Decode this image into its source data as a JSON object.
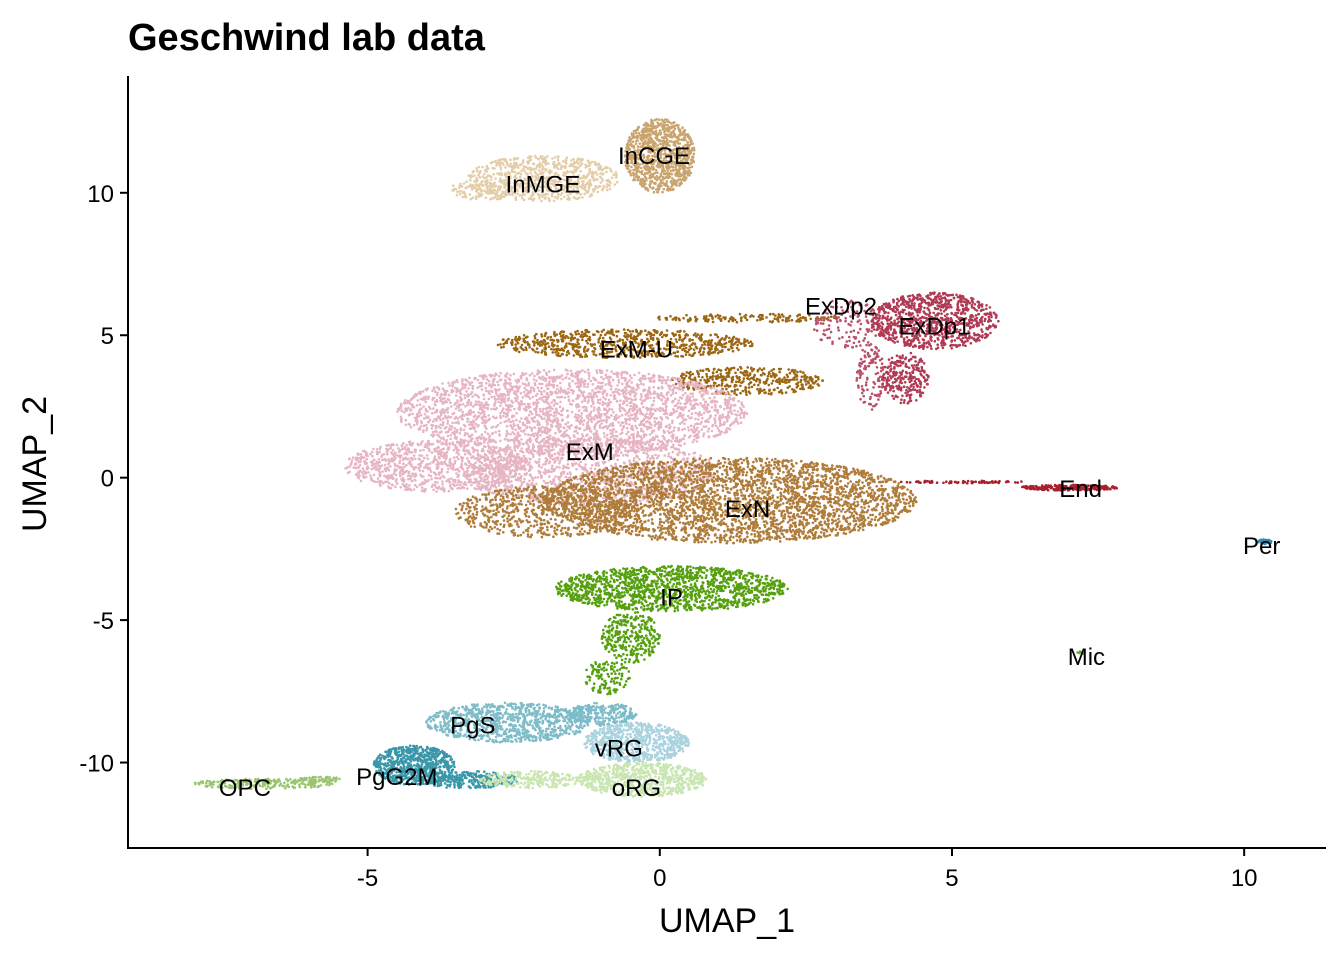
{
  "chart_data": {
    "type": "scatter",
    "title": "Geschwind lab data",
    "xlabel": "UMAP_1",
    "ylabel": "UMAP_2",
    "xlim": [
      -9.1,
      11.4
    ],
    "ylim": [
      -13.0,
      14.1
    ],
    "xticks": [
      "-5",
      "0",
      "5",
      "10"
    ],
    "yticks": [
      "-10",
      "-5",
      "0",
      "5",
      "10"
    ],
    "grid": false,
    "legend": "none",
    "clusters": [
      {
        "label": "InCGE",
        "x": -0.1,
        "y": 11.3,
        "color": "#c9a46e",
        "blobs": [
          {
            "cx": 0.0,
            "cy": 11.3,
            "rx": 0.6,
            "ry": 1.3,
            "n": 900
          }
        ]
      },
      {
        "label": "InMGE",
        "x": -2.0,
        "y": 10.3,
        "color": "#e4cda9",
        "blobs": [
          {
            "cx": -2.0,
            "cy": 10.5,
            "rx": 1.3,
            "ry": 0.8,
            "n": 700
          },
          {
            "cx": -3.0,
            "cy": 10.1,
            "rx": 0.6,
            "ry": 0.35,
            "n": 120
          }
        ]
      },
      {
        "label": "ExM-U",
        "x": -0.4,
        "y": 4.5,
        "color": "#9c6612",
        "blobs": [
          {
            "cx": -0.6,
            "cy": 4.7,
            "rx": 2.2,
            "ry": 0.5,
            "n": 700
          },
          {
            "cx": 1.5,
            "cy": 3.4,
            "rx": 1.3,
            "ry": 0.5,
            "n": 400
          },
          {
            "cx": 1.5,
            "cy": 5.6,
            "rx": 1.6,
            "ry": 0.15,
            "n": 150
          }
        ]
      },
      {
        "label": "ExDp2",
        "x": 3.1,
        "y": 6.0,
        "color": "#b8506a",
        "blobs": [
          {
            "cx": 3.2,
            "cy": 5.4,
            "rx": 0.6,
            "ry": 0.9,
            "n": 140
          },
          {
            "cx": 3.6,
            "cy": 3.5,
            "rx": 0.25,
            "ry": 1.2,
            "n": 120
          }
        ]
      },
      {
        "label": "ExDp1",
        "x": 4.7,
        "y": 5.3,
        "color": "#b03a54",
        "blobs": [
          {
            "cx": 4.7,
            "cy": 5.5,
            "rx": 1.1,
            "ry": 1.0,
            "n": 900
          },
          {
            "cx": 4.2,
            "cy": 3.5,
            "rx": 0.4,
            "ry": 0.9,
            "n": 250
          }
        ]
      },
      {
        "label": "ExM",
        "x": -1.2,
        "y": 0.9,
        "color": "#e6b4c2",
        "blobs": [
          {
            "cx": -1.5,
            "cy": 2.3,
            "rx": 3.0,
            "ry": 1.5,
            "n": 2600
          },
          {
            "cx": -3.8,
            "cy": 0.4,
            "rx": 1.6,
            "ry": 0.9,
            "n": 900
          },
          {
            "cx": -1.2,
            "cy": 0.2,
            "rx": 2.2,
            "ry": 1.2,
            "n": 1200
          }
        ]
      },
      {
        "label": "ExN",
        "x": 1.5,
        "y": -1.1,
        "color": "#b07c3a",
        "blobs": [
          {
            "cx": 1.2,
            "cy": -0.8,
            "rx": 3.2,
            "ry": 1.5,
            "n": 3400
          },
          {
            "cx": -2.0,
            "cy": -1.2,
            "rx": 1.5,
            "ry": 0.9,
            "n": 700
          }
        ]
      },
      {
        "label": "IP",
        "x": 0.2,
        "y": -4.2,
        "color": "#56a00f",
        "blobs": [
          {
            "cx": 0.2,
            "cy": -3.9,
            "rx": 2.0,
            "ry": 0.8,
            "n": 1400
          },
          {
            "cx": -0.5,
            "cy": -5.6,
            "rx": 0.5,
            "ry": 0.9,
            "n": 300
          },
          {
            "cx": -0.9,
            "cy": -7.0,
            "rx": 0.4,
            "ry": 0.6,
            "n": 120
          }
        ]
      },
      {
        "label": "End",
        "x": 7.2,
        "y": -0.4,
        "color": "#a8202e",
        "blobs": [
          {
            "cx": 7.0,
            "cy": -0.35,
            "rx": 0.85,
            "ry": 0.1,
            "n": 260
          },
          {
            "cx": 5.2,
            "cy": -0.15,
            "rx": 1.1,
            "ry": 0.05,
            "n": 70
          }
        ]
      },
      {
        "label": "Per",
        "x": 10.3,
        "y": -2.4,
        "color": "#2c8fb3",
        "blobs": [
          {
            "cx": 10.35,
            "cy": -2.25,
            "rx": 0.12,
            "ry": 0.08,
            "n": 50
          }
        ]
      },
      {
        "label": "Mic",
        "x": 7.3,
        "y": -6.3,
        "color": "#6aa52a",
        "blobs": [
          {
            "cx": 7.2,
            "cy": -6.1,
            "rx": 0.08,
            "ry": 0.1,
            "n": 6
          }
        ]
      },
      {
        "label": "PgS",
        "x": -3.2,
        "y": -8.7,
        "color": "#7dbcc8",
        "blobs": [
          {
            "cx": -2.6,
            "cy": -8.6,
            "rx": 1.4,
            "ry": 0.7,
            "n": 900
          },
          {
            "cx": -1.0,
            "cy": -8.3,
            "rx": 0.6,
            "ry": 0.4,
            "n": 250
          }
        ]
      },
      {
        "label": "PgG2M",
        "x": -4.5,
        "y": -10.5,
        "color": "#3a97aa",
        "blobs": [
          {
            "cx": -4.2,
            "cy": -10.1,
            "rx": 0.7,
            "ry": 0.7,
            "n": 700
          },
          {
            "cx": -3.3,
            "cy": -10.6,
            "rx": 0.9,
            "ry": 0.3,
            "n": 300
          }
        ]
      },
      {
        "label": "vRG",
        "x": -0.7,
        "y": -9.5,
        "color": "#a9d3de",
        "blobs": [
          {
            "cx": -0.4,
            "cy": -9.3,
            "rx": 0.9,
            "ry": 0.7,
            "n": 700
          }
        ]
      },
      {
        "label": "oRG",
        "x": -0.4,
        "y": -10.9,
        "color": "#c9e6b1",
        "blobs": [
          {
            "cx": -0.3,
            "cy": -10.6,
            "rx": 1.1,
            "ry": 0.6,
            "n": 700
          },
          {
            "cx": -2.2,
            "cy": -10.6,
            "rx": 0.9,
            "ry": 0.3,
            "n": 250
          }
        ]
      },
      {
        "label": "OPC",
        "x": -7.1,
        "y": -10.9,
        "color": "#99c56f",
        "blobs": [
          {
            "cx": -6.8,
            "cy": -10.75,
            "rx": 1.2,
            "ry": 0.18,
            "n": 200
          },
          {
            "cx": -5.8,
            "cy": -10.6,
            "rx": 0.4,
            "ry": 0.1,
            "n": 60
          }
        ]
      }
    ]
  }
}
